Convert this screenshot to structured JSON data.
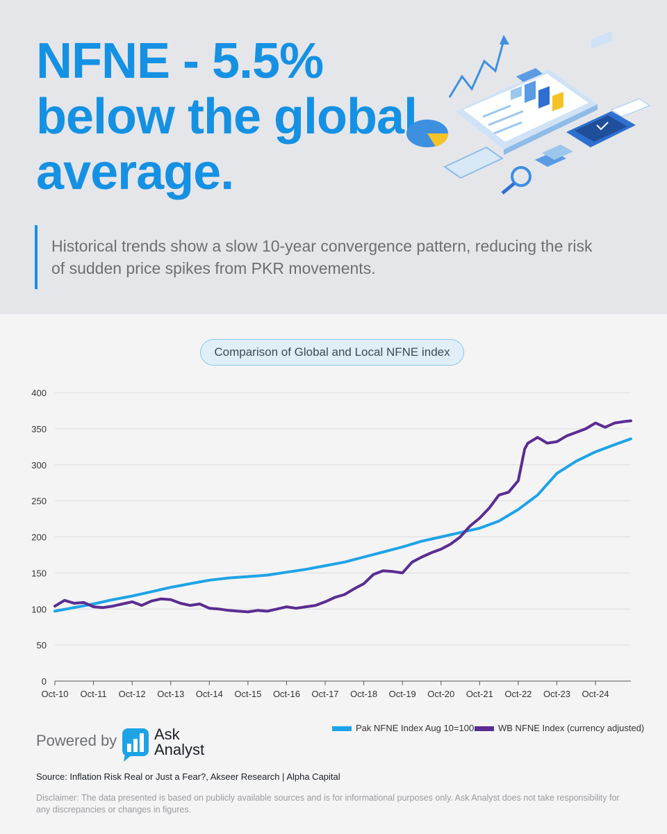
{
  "hero": {
    "headline_lines": [
      "NFNE - 5.5%",
      "below the global",
      "average."
    ],
    "subtitle": "Historical trends show a slow 10-year convergence pattern, reducing the risk of sudden price spikes from PKR movements."
  },
  "illustration": {
    "icon": "finance-report-illustration-icon",
    "accent_color": "#3d8fe0",
    "highlight_color": "#f6c327"
  },
  "chart_title": "Comparison of Global and Local NFNE index",
  "chart_data": {
    "type": "line",
    "title": "Comparison of Global and Local NFNE index",
    "xlabel": "",
    "ylabel": "",
    "x_tick_labels": [
      "Oct-10",
      "Oct-11",
      "Oct-12",
      "Oct-13",
      "Oct-14",
      "Oct-15",
      "Oct-16",
      "Oct-17",
      "Oct-18",
      "Oct-19",
      "Oct-20",
      "Oct-21",
      "Oct-22",
      "Oct-23",
      "Oct-24"
    ],
    "y_ticks": [
      0,
      50,
      100,
      150,
      200,
      250,
      300,
      350,
      400
    ],
    "ylim": [
      0,
      400
    ],
    "grid": "horizontal",
    "legend_position": "bottom-right",
    "series": [
      {
        "name": "Pak NFNE Index Aug 10=100",
        "color": "#1ea3e6",
        "points": [
          [
            "Oct-10",
            97
          ],
          [
            "Apr-11",
            102
          ],
          [
            "Oct-11",
            107
          ],
          [
            "Apr-12",
            113
          ],
          [
            "Oct-12",
            118
          ],
          [
            "Apr-13",
            124
          ],
          [
            "Oct-13",
            130
          ],
          [
            "Apr-14",
            135
          ],
          [
            "Oct-14",
            140
          ],
          [
            "Apr-15",
            143
          ],
          [
            "Oct-15",
            145
          ],
          [
            "Apr-16",
            147
          ],
          [
            "Oct-16",
            151
          ],
          [
            "Apr-17",
            155
          ],
          [
            "Oct-17",
            160
          ],
          [
            "Apr-18",
            165
          ],
          [
            "Oct-18",
            172
          ],
          [
            "Apr-19",
            179
          ],
          [
            "Oct-19",
            186
          ],
          [
            "Apr-20",
            194
          ],
          [
            "Oct-20",
            200
          ],
          [
            "Apr-21",
            206
          ],
          [
            "Oct-21",
            212
          ],
          [
            "Apr-22",
            222
          ],
          [
            "Oct-22",
            238
          ],
          [
            "Apr-23",
            258
          ],
          [
            "Oct-23",
            288
          ],
          [
            "Apr-24",
            305
          ],
          [
            "Oct-24",
            318
          ],
          [
            "Apr-25",
            328
          ],
          [
            "Sep-25",
            336
          ]
        ]
      },
      {
        "name": "WB NFNE Index (currency adjusted)",
        "color": "#5a2d91",
        "points": [
          [
            "Oct-10",
            104
          ],
          [
            "Jan-11",
            112
          ],
          [
            "Apr-11",
            108
          ],
          [
            "Jul-11",
            109
          ],
          [
            "Oct-11",
            103
          ],
          [
            "Jan-12",
            102
          ],
          [
            "Apr-12",
            104
          ],
          [
            "Jul-12",
            107
          ],
          [
            "Oct-12",
            110
          ],
          [
            "Jan-13",
            105
          ],
          [
            "Apr-13",
            111
          ],
          [
            "Jul-13",
            114
          ],
          [
            "Oct-13",
            113
          ],
          [
            "Jan-14",
            108
          ],
          [
            "Apr-14",
            105
          ],
          [
            "Jul-14",
            107
          ],
          [
            "Oct-14",
            101
          ],
          [
            "Jan-15",
            100
          ],
          [
            "Apr-15",
            98
          ],
          [
            "Jul-15",
            97
          ],
          [
            "Oct-15",
            96
          ],
          [
            "Jan-16",
            98
          ],
          [
            "Apr-16",
            97
          ],
          [
            "Jul-16",
            100
          ],
          [
            "Oct-16",
            103
          ],
          [
            "Jan-17",
            101
          ],
          [
            "Apr-17",
            103
          ],
          [
            "Jul-17",
            105
          ],
          [
            "Oct-17",
            110
          ],
          [
            "Jan-18",
            116
          ],
          [
            "Apr-18",
            120
          ],
          [
            "Jul-18",
            128
          ],
          [
            "Oct-18",
            135
          ],
          [
            "Jan-19",
            148
          ],
          [
            "Apr-19",
            153
          ],
          [
            "Jul-19",
            152
          ],
          [
            "Oct-19",
            150
          ],
          [
            "Jan-20",
            165
          ],
          [
            "Apr-20",
            172
          ],
          [
            "Jul-20",
            178
          ],
          [
            "Oct-20",
            183
          ],
          [
            "Jan-21",
            190
          ],
          [
            "Apr-21",
            200
          ],
          [
            "Jul-21",
            215
          ],
          [
            "Oct-21",
            226
          ],
          [
            "Jan-22",
            240
          ],
          [
            "Apr-22",
            258
          ],
          [
            "Jul-22",
            262
          ],
          [
            "Oct-22",
            278
          ],
          [
            "Dec-22",
            322
          ],
          [
            "Jan-23",
            330
          ],
          [
            "Apr-23",
            338
          ],
          [
            "Jul-23",
            330
          ],
          [
            "Oct-23",
            332
          ],
          [
            "Jan-24",
            340
          ],
          [
            "Apr-24",
            345
          ],
          [
            "Jul-24",
            350
          ],
          [
            "Oct-24",
            358
          ],
          [
            "Jan-25",
            352
          ],
          [
            "Apr-25",
            358
          ],
          [
            "Jul-25",
            360
          ],
          [
            "Sep-25",
            361
          ]
        ]
      }
    ]
  },
  "branding": {
    "powered_by": "Powered by",
    "logo_line1": "Ask",
    "logo_line2": "Analyst",
    "logo_icon": "bar-chart-speech-bubble-icon"
  },
  "source": "Source: Inflation Risk Real or Just a Fear?, Akseer Research | Alpha Capital",
  "disclaimer": "Disclaimer: The data presented is based on publicly available sources and is for informational purposes only. Ask Analyst does not take responsibility for any discrepancies or changes in figures."
}
